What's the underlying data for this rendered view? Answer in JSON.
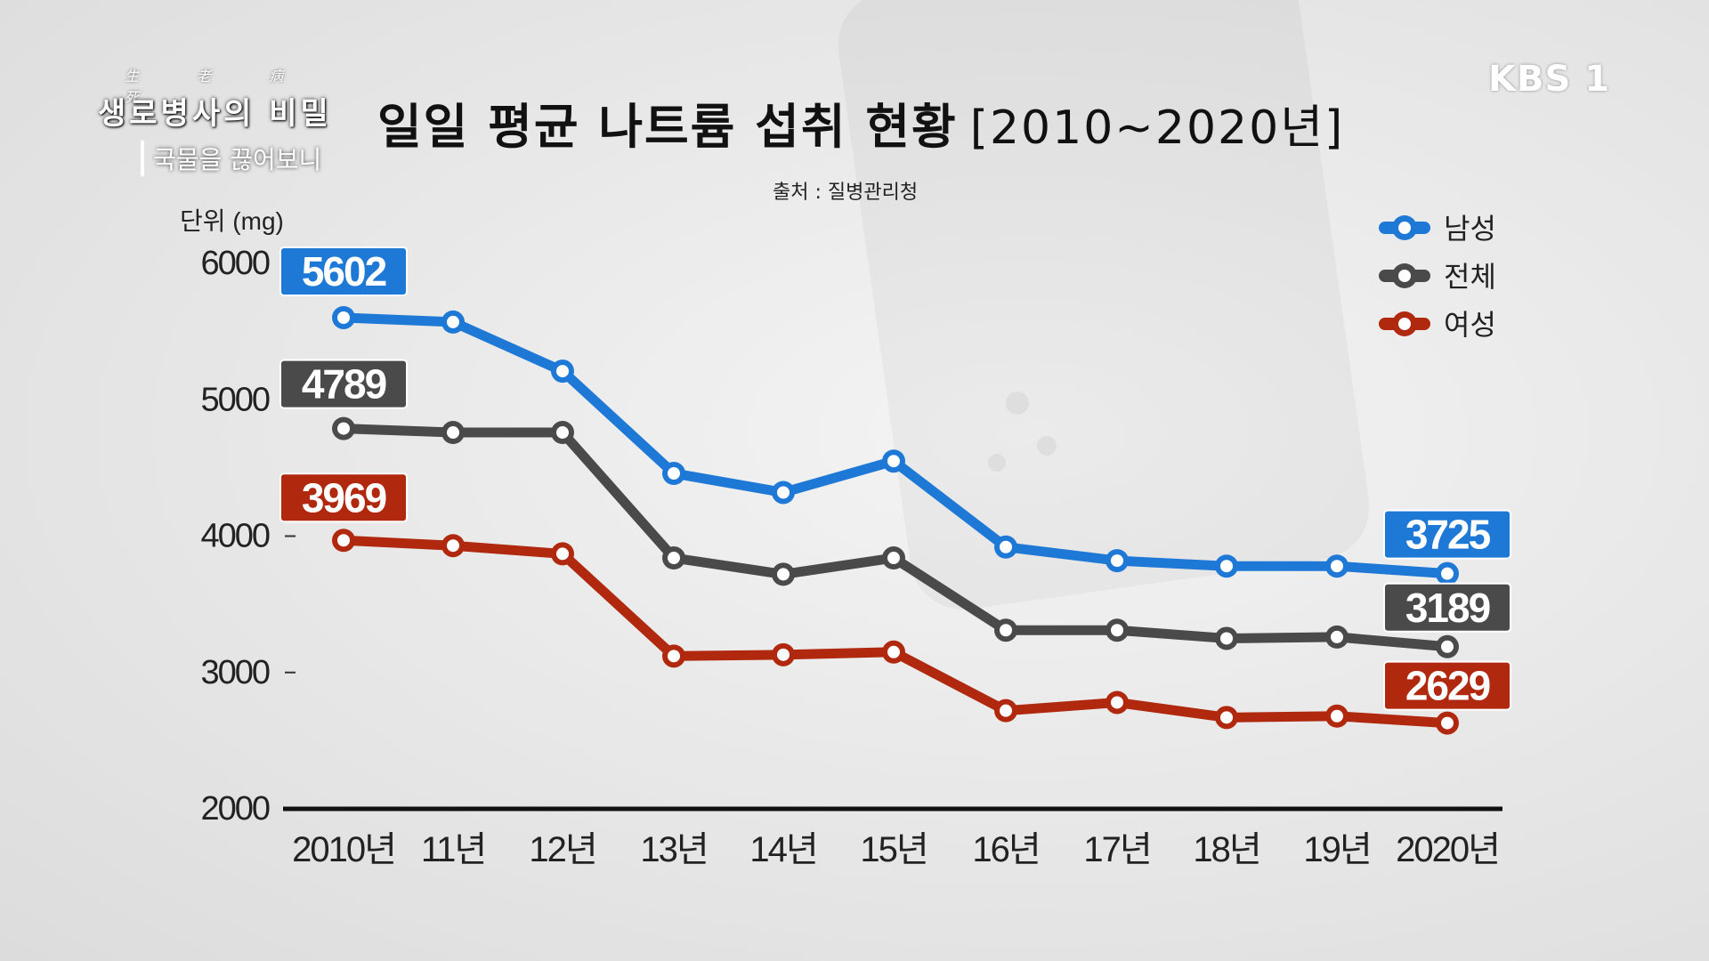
{
  "header": {
    "show_hanja": "生 老 病 死",
    "show_title": "생로병사의 비밀",
    "episode": "국물을 끊어보니",
    "channel": "KBS 1",
    "title": "일일 평균 나트륨 섭취 현황",
    "title_period": "[2010~2020년]",
    "source": "출처 : 질병관리청"
  },
  "chart_data": {
    "type": "line",
    "title": "일일 평균 나트륨 섭취 현황 [2010~2020년]",
    "ylabel": "단위 (mg)",
    "xlabel": "",
    "categories": [
      "2010년",
      "11년",
      "12년",
      "13년",
      "14년",
      "15년",
      "16년",
      "17년",
      "18년",
      "19년",
      "2020년"
    ],
    "ylim": [
      2000,
      6000
    ],
    "yticks": [
      2000,
      3000,
      4000,
      5000,
      6000
    ],
    "series": [
      {
        "name": "남성",
        "color": "#1e78d6",
        "values": [
          5602,
          5570,
          5210,
          4460,
          4320,
          4550,
          3920,
          3820,
          3780,
          3780,
          3725
        ]
      },
      {
        "name": "전체",
        "color": "#4a4a4a",
        "values": [
          4789,
          4760,
          4760,
          3840,
          3720,
          3840,
          3310,
          3310,
          3250,
          3260,
          3189
        ]
      },
      {
        "name": "여성",
        "color": "#b0280e",
        "values": [
          3969,
          3930,
          3870,
          3120,
          3130,
          3150,
          2720,
          2780,
          2670,
          2680,
          2629
        ]
      }
    ],
    "data_labels": [
      {
        "series": 0,
        "index": 0,
        "text": "5602"
      },
      {
        "series": 1,
        "index": 0,
        "text": "4789"
      },
      {
        "series": 2,
        "index": 0,
        "text": "3969"
      },
      {
        "series": 0,
        "index": 10,
        "text": "3725"
      },
      {
        "series": 1,
        "index": 10,
        "text": "3189"
      },
      {
        "series": 2,
        "index": 10,
        "text": "2629"
      }
    ],
    "legend_position": "top-right",
    "grid": false
  }
}
